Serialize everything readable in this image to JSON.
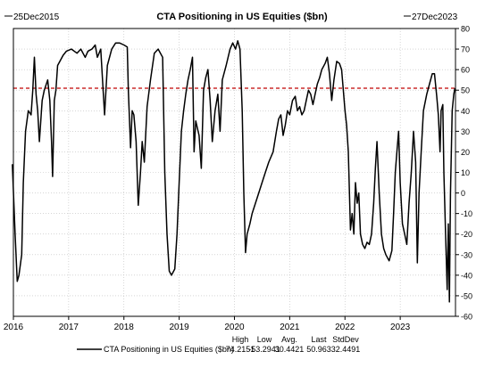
{
  "chart_data": {
    "type": "line",
    "title": "CTA Positioning in US Equities ($bn)",
    "start_label": "25Dec2015",
    "end_label": "27Dec2023",
    "xlim": [
      2016.0,
      2024.0
    ],
    "ylim": [
      -60,
      80
    ],
    "y_ticks": [
      -60,
      -50,
      -40,
      -30,
      -20,
      -10,
      0,
      10,
      20,
      30,
      40,
      50,
      60,
      70,
      80
    ],
    "x_tick_labels": [
      {
        "x": 2016,
        "label": "2016"
      },
      {
        "x": 2017,
        "label": "2017"
      },
      {
        "x": 2018,
        "label": "2018"
      },
      {
        "x": 2019,
        "label": "2019"
      },
      {
        "x": 2020,
        "label": "2020"
      },
      {
        "x": 2021,
        "label": "2021"
      },
      {
        "x": 2022,
        "label": "2022"
      },
      {
        "x": 2023,
        "label": "2023"
      }
    ],
    "grid": true,
    "reference_line": {
      "y": 50.963,
      "color": "#c00000",
      "style": "dashed"
    },
    "series": [
      {
        "name": "CTA Positioning in US Equities ($bn)",
        "color": "#000000",
        "points": [
          [
            2015.98,
            14
          ],
          [
            2016.03,
            -20
          ],
          [
            2016.07,
            -43
          ],
          [
            2016.1,
            -40
          ],
          [
            2016.15,
            -30
          ],
          [
            2016.18,
            5
          ],
          [
            2016.22,
            30
          ],
          [
            2016.27,
            40
          ],
          [
            2016.32,
            38
          ],
          [
            2016.35,
            50
          ],
          [
            2016.38,
            66
          ],
          [
            2016.41,
            48
          ],
          [
            2016.44,
            40
          ],
          [
            2016.47,
            25
          ],
          [
            2016.52,
            45
          ],
          [
            2016.56,
            50
          ],
          [
            2016.62,
            55
          ],
          [
            2016.66,
            45
          ],
          [
            2016.69,
            25
          ],
          [
            2016.71,
            8
          ],
          [
            2016.74,
            45
          ],
          [
            2016.77,
            50
          ],
          [
            2016.8,
            62
          ],
          [
            2016.84,
            64
          ],
          [
            2016.9,
            67
          ],
          [
            2016.96,
            69
          ],
          [
            2017.05,
            70
          ],
          [
            2017.15,
            68
          ],
          [
            2017.22,
            70
          ],
          [
            2017.3,
            66
          ],
          [
            2017.35,
            69
          ],
          [
            2017.42,
            70
          ],
          [
            2017.48,
            72
          ],
          [
            2017.52,
            66
          ],
          [
            2017.58,
            70
          ],
          [
            2017.62,
            52
          ],
          [
            2017.65,
            38
          ],
          [
            2017.7,
            62
          ],
          [
            2017.78,
            70
          ],
          [
            2017.85,
            73
          ],
          [
            2017.92,
            73
          ],
          [
            2018.0,
            72
          ],
          [
            2018.06,
            71
          ],
          [
            2018.08,
            50
          ],
          [
            2018.12,
            22
          ],
          [
            2018.15,
            40
          ],
          [
            2018.18,
            38
          ],
          [
            2018.22,
            25
          ],
          [
            2018.26,
            -6
          ],
          [
            2018.3,
            10
          ],
          [
            2018.33,
            25
          ],
          [
            2018.37,
            15
          ],
          [
            2018.42,
            42
          ],
          [
            2018.48,
            55
          ],
          [
            2018.55,
            68
          ],
          [
            2018.62,
            70
          ],
          [
            2018.7,
            66
          ],
          [
            2018.74,
            10
          ],
          [
            2018.78,
            -20
          ],
          [
            2018.82,
            -38
          ],
          [
            2018.86,
            -40
          ],
          [
            2018.92,
            -37
          ],
          [
            2018.96,
            -20
          ],
          [
            2019.0,
            5
          ],
          [
            2019.04,
            30
          ],
          [
            2019.08,
            40
          ],
          [
            2019.12,
            48
          ],
          [
            2019.16,
            55
          ],
          [
            2019.2,
            60
          ],
          [
            2019.24,
            66
          ],
          [
            2019.27,
            20
          ],
          [
            2019.3,
            35
          ],
          [
            2019.36,
            28
          ],
          [
            2019.4,
            12
          ],
          [
            2019.44,
            50
          ],
          [
            2019.48,
            56
          ],
          [
            2019.52,
            60
          ],
          [
            2019.56,
            45
          ],
          [
            2019.6,
            25
          ],
          [
            2019.65,
            40
          ],
          [
            2019.7,
            48
          ],
          [
            2019.74,
            30
          ],
          [
            2019.78,
            55
          ],
          [
            2019.85,
            62
          ],
          [
            2019.92,
            70
          ],
          [
            2019.97,
            73
          ],
          [
            2020.02,
            70
          ],
          [
            2020.06,
            74
          ],
          [
            2020.1,
            70
          ],
          [
            2020.14,
            40
          ],
          [
            2020.17,
            0
          ],
          [
            2020.2,
            -29
          ],
          [
            2020.23,
            -20
          ],
          [
            2020.28,
            -15
          ],
          [
            2020.32,
            -10
          ],
          [
            2020.38,
            -5
          ],
          [
            2020.44,
            0
          ],
          [
            2020.5,
            5
          ],
          [
            2020.56,
            10
          ],
          [
            2020.62,
            15
          ],
          [
            2020.7,
            20
          ],
          [
            2020.76,
            30
          ],
          [
            2020.8,
            36
          ],
          [
            2020.84,
            38
          ],
          [
            2020.88,
            28
          ],
          [
            2020.92,
            33
          ],
          [
            2020.96,
            40
          ],
          [
            2021.0,
            38
          ],
          [
            2021.05,
            45
          ],
          [
            2021.1,
            47
          ],
          [
            2021.14,
            40
          ],
          [
            2021.18,
            42
          ],
          [
            2021.22,
            38
          ],
          [
            2021.26,
            40
          ],
          [
            2021.3,
            45
          ],
          [
            2021.34,
            50
          ],
          [
            2021.38,
            48
          ],
          [
            2021.42,
            43
          ],
          [
            2021.46,
            48
          ],
          [
            2021.5,
            53
          ],
          [
            2021.54,
            56
          ],
          [
            2021.58,
            60
          ],
          [
            2021.64,
            63
          ],
          [
            2021.68,
            66
          ],
          [
            2021.72,
            58
          ],
          [
            2021.76,
            45
          ],
          [
            2021.8,
            55
          ],
          [
            2021.85,
            64
          ],
          [
            2021.9,
            63
          ],
          [
            2021.94,
            60
          ],
          [
            2021.97,
            50
          ],
          [
            2022.0,
            40
          ],
          [
            2022.03,
            33
          ],
          [
            2022.06,
            20
          ],
          [
            2022.1,
            -18
          ],
          [
            2022.13,
            -10
          ],
          [
            2022.16,
            -20
          ],
          [
            2022.19,
            5
          ],
          [
            2022.22,
            -5
          ],
          [
            2022.25,
            0
          ],
          [
            2022.28,
            -20
          ],
          [
            2022.32,
            -25
          ],
          [
            2022.36,
            -27
          ],
          [
            2022.4,
            -24
          ],
          [
            2022.44,
            -25
          ],
          [
            2022.48,
            -20
          ],
          [
            2022.52,
            -5
          ],
          [
            2022.55,
            12
          ],
          [
            2022.58,
            25
          ],
          [
            2022.62,
            0
          ],
          [
            2022.66,
            -20
          ],
          [
            2022.7,
            -27
          ],
          [
            2022.74,
            -30
          ],
          [
            2022.8,
            -33
          ],
          [
            2022.85,
            -28
          ],
          [
            2022.88,
            -10
          ],
          [
            2022.91,
            10
          ],
          [
            2022.94,
            20
          ],
          [
            2022.97,
            30
          ],
          [
            2023.0,
            5
          ],
          [
            2023.04,
            -15
          ],
          [
            2023.08,
            -20
          ],
          [
            2023.12,
            -25
          ],
          [
            2023.16,
            -5
          ],
          [
            2023.2,
            10
          ],
          [
            2023.24,
            30
          ],
          [
            2023.28,
            15
          ],
          [
            2023.31,
            -34
          ],
          [
            2023.34,
            0
          ],
          [
            2023.38,
            20
          ],
          [
            2023.42,
            40
          ],
          [
            2023.48,
            48
          ],
          [
            2023.54,
            54
          ],
          [
            2023.58,
            58
          ],
          [
            2023.62,
            58
          ],
          [
            2023.66,
            47
          ],
          [
            2023.69,
            38
          ],
          [
            2023.72,
            20
          ],
          [
            2023.74,
            40
          ],
          [
            2023.77,
            43
          ],
          [
            2023.79,
            10
          ],
          [
            2023.82,
            -20
          ],
          [
            2023.85,
            -47
          ],
          [
            2023.87,
            -15
          ],
          [
            2023.89,
            -53
          ],
          [
            2023.91,
            0
          ],
          [
            2023.94,
            40
          ],
          [
            2023.97,
            48
          ],
          [
            2023.99,
            51
          ]
        ]
      }
    ],
    "legend": {
      "placement": "bottom",
      "series_label": "CTA Positioning in US Equities ($bn)",
      "stats": [
        {
          "label": "High",
          "value": "74.2151"
        },
        {
          "label": "Low",
          "value": "-53.2941"
        },
        {
          "label": "Avg.",
          "value": "30.4421"
        },
        {
          "label": "Last",
          "value": "50.963"
        },
        {
          "label": "StdDev",
          "value": "32.4491"
        }
      ]
    }
  }
}
